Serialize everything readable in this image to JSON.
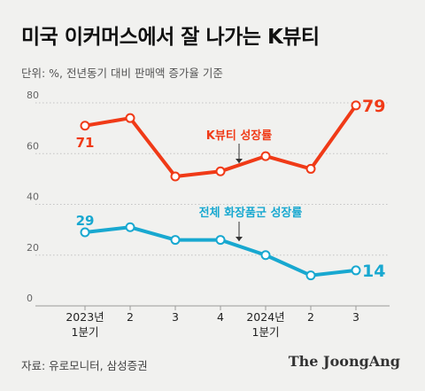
{
  "title": "미국 이커머스에서 잘 나가는 K뷰티",
  "unit_note": "단위: %, 전년동기 대비 판매액 증가율 기준",
  "source": "자료: 유로모니터, 삼성증권",
  "logo": "The JoongAng",
  "colors": {
    "kbeauty": "#f03a17",
    "total_cosmetics": "#18a8d0",
    "background": "#f1f1ef"
  },
  "chart_data": {
    "type": "line",
    "categories": [
      [
        "2023년",
        "1분기"
      ],
      [
        "2"
      ],
      [
        "3"
      ],
      [
        "4"
      ],
      [
        "2024년",
        "1분기"
      ],
      [
        "2"
      ],
      [
        "3"
      ]
    ],
    "ylim": [
      0,
      80
    ],
    "yticks": [
      0,
      20,
      40,
      60,
      80
    ],
    "grid": "horizontal",
    "series": [
      {
        "name": "K뷰티 성장률",
        "color": "#f03a17",
        "values": [
          71,
          74,
          51,
          53,
          59,
          54,
          79
        ],
        "labels": {
          "first": "71",
          "last": "79"
        }
      },
      {
        "name": "전체 화장품군 성장률",
        "color": "#18a8d0",
        "values": [
          29,
          31,
          26,
          26,
          20,
          12,
          14
        ],
        "labels": {
          "first": "29",
          "last": "14"
        }
      }
    ]
  }
}
